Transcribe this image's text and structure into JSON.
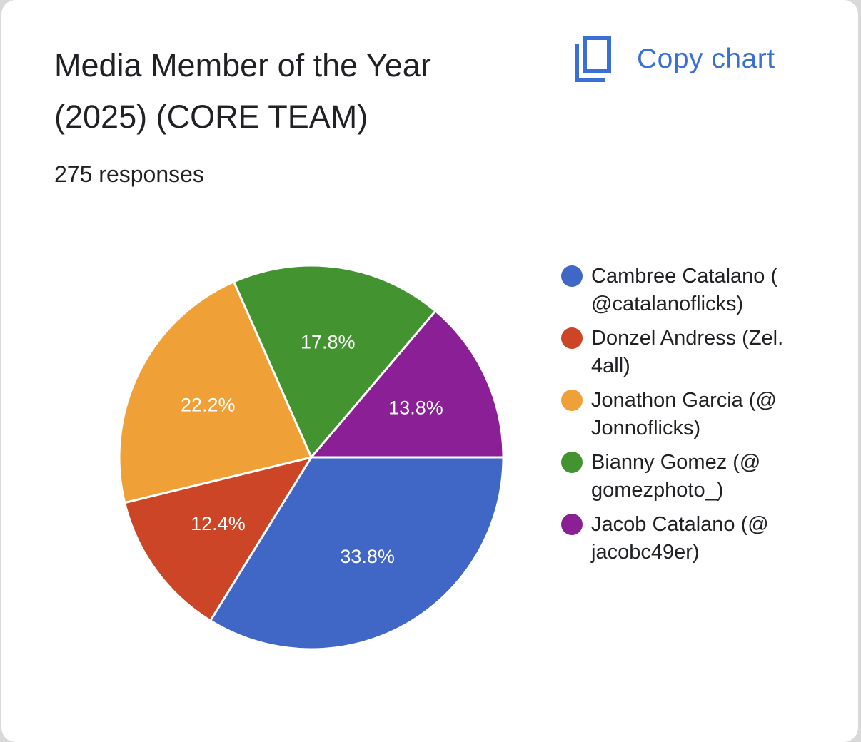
{
  "card": {
    "title": "Media Member of the Year (2025) (CORE TEAM)",
    "responses": "275 responses",
    "copy_label": "Copy chart",
    "copy_icon": "copy-icon"
  },
  "colors": {
    "accent": "#3a6fd8",
    "background": "#ffffff"
  },
  "chart_data": {
    "type": "pie",
    "title": "Media Member of the Year (2025) (CORE TEAM)",
    "legend_position": "right",
    "slices": [
      {
        "name": "Cambree Catalano ( @catalanoflicks)",
        "value": 33.8,
        "label": "33.8%",
        "color": "#4066c6"
      },
      {
        "name": "Donzel Andress (Zel. 4all)",
        "value": 12.4,
        "label": "12.4%",
        "color": "#cc4526"
      },
      {
        "name": "Jonathon Garcia (@ Jonnoflicks)",
        "value": 22.2,
        "label": "22.2%",
        "color": "#efa037"
      },
      {
        "name": "Bianny Gomez (@ gomezphoto_)",
        "value": 17.8,
        "label": "17.8%",
        "color": "#439431"
      },
      {
        "name": "Jacob Catalano (@ jacobc49er)",
        "value": 13.8,
        "label": "13.8%",
        "color": "#8a1f96"
      }
    ]
  }
}
